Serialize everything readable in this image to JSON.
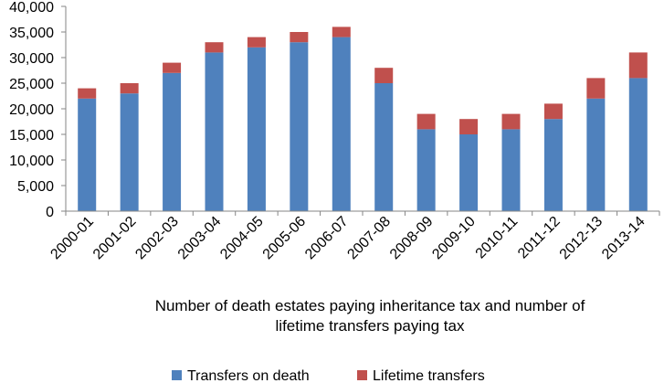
{
  "chart_data": {
    "type": "bar",
    "stacked": true,
    "categories": [
      "2000-01",
      "2001-02",
      "2002-03",
      "2003-04",
      "2004-05",
      "2005-06",
      "2006-07",
      "2007-08",
      "2008-09",
      "2009-10",
      "2010-11",
      "2011-12",
      "2012-13",
      "2013-14"
    ],
    "series": [
      {
        "name": "Transfers on death",
        "color": "#4F81BD",
        "values": [
          22000,
          23000,
          27000,
          31000,
          32000,
          33000,
          34000,
          25000,
          16000,
          15000,
          16000,
          18000,
          22000,
          26000
        ]
      },
      {
        "name": "Lifetime transfers",
        "color": "#C0504D",
        "values": [
          2000,
          2000,
          2000,
          2000,
          2000,
          2000,
          2000,
          3000,
          3000,
          3000,
          3000,
          3000,
          4000,
          5000
        ]
      }
    ],
    "xlabel_lines": [
      "Number of death estates paying inheritance tax and number of",
      "lifetime transfers paying tax"
    ],
    "ylim": [
      0,
      40000
    ],
    "yticks": [
      0,
      5000,
      10000,
      15000,
      20000,
      25000,
      30000,
      35000,
      40000
    ],
    "ytick_labels": [
      "0",
      "5,000",
      "10,000",
      "15,000",
      "20,000",
      "25,000",
      "30,000",
      "35,000",
      "40,000"
    ],
    "grid": false,
    "legend_position": "bottom"
  }
}
